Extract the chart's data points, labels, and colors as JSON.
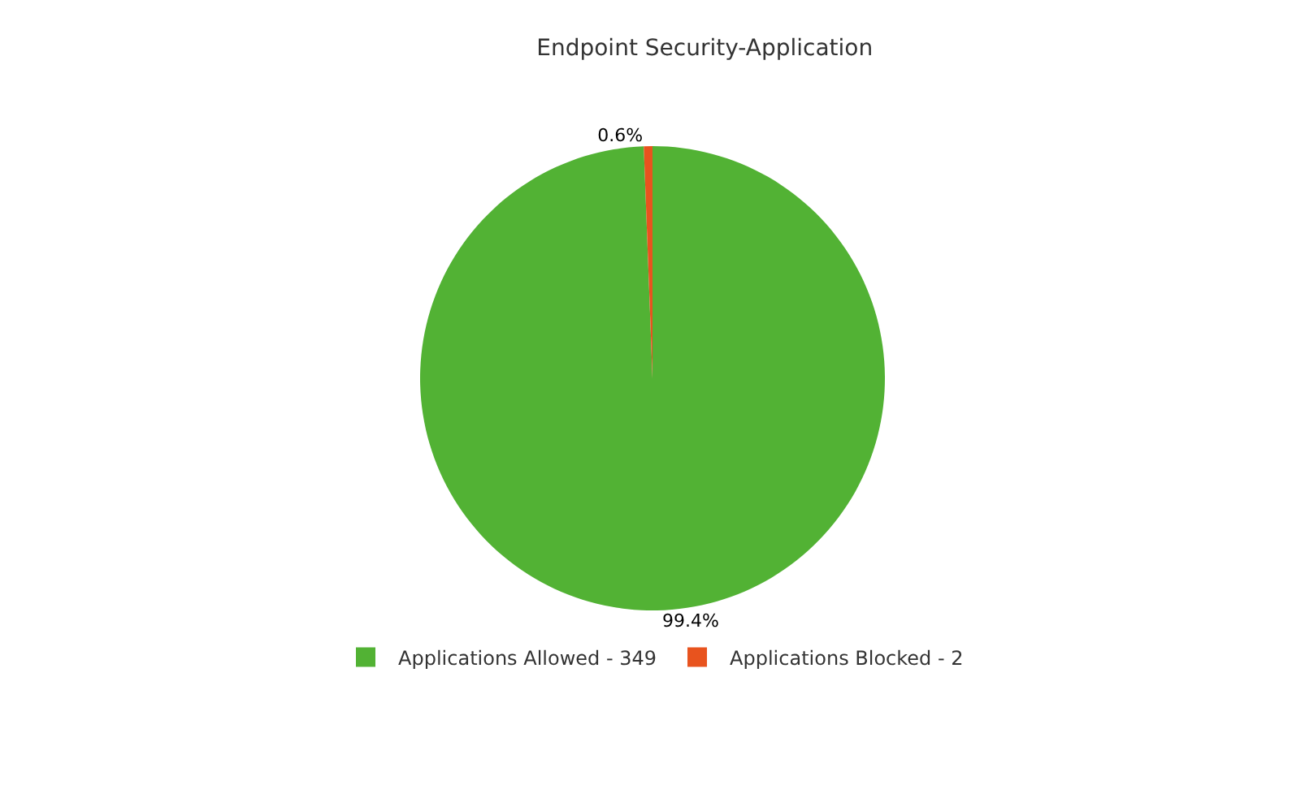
{
  "chart_data": {
    "type": "pie",
    "title": "Endpoint Security-Application",
    "categories": [
      "Applications Allowed - 349",
      "Applications Blocked - 2"
    ],
    "values": [
      99.4,
      0.6
    ],
    "value_labels": [
      "99.4%",
      "0.6%"
    ],
    "colors": [
      "#52b234",
      "#e8531e"
    ],
    "legend": "bottom"
  }
}
